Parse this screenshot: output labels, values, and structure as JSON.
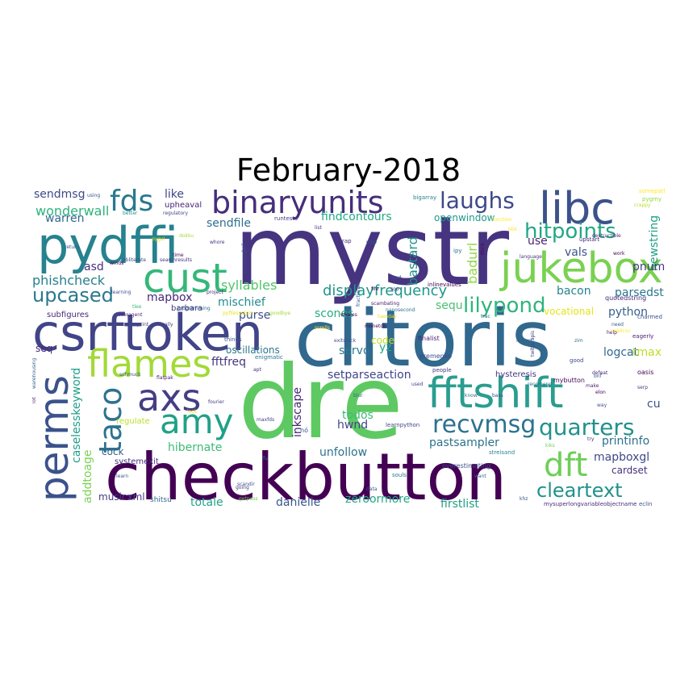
{
  "title": "February-2018",
  "words": [
    {
      "text": "mystr",
      "color": "#463480"
    },
    {
      "text": "clitoris",
      "color": "#31688e"
    },
    {
      "text": "checkbutton",
      "color": "#440154"
    },
    {
      "text": "dre",
      "color": "#5ec962"
    },
    {
      "text": "csrftoken",
      "color": "#414487"
    },
    {
      "text": "pydffi",
      "color": "#26828e"
    },
    {
      "text": "libc",
      "color": "#3b528b"
    },
    {
      "text": "jukebox",
      "color": "#7ad151"
    },
    {
      "text": "fftshift",
      "color": "#2a9d8f"
    },
    {
      "text": "binaryunits",
      "color": "#472d7b"
    },
    {
      "text": "perms",
      "color": "#3b528b"
    },
    {
      "text": "flames",
      "color": "#a2da37"
    },
    {
      "text": "cust",
      "color": "#35b779"
    },
    {
      "text": "axs",
      "color": "#433e85"
    },
    {
      "text": "amy",
      "color": "#1fa187"
    },
    {
      "text": "dft",
      "color": "#6ece58"
    },
    {
      "text": "taco",
      "color": "#2c728e"
    },
    {
      "text": "recvmsg",
      "color": "#2c728e"
    },
    {
      "text": "quarters",
      "color": "#21918c"
    },
    {
      "text": "fds",
      "color": "#2a788e"
    },
    {
      "text": "laughs",
      "color": "#3e4989"
    },
    {
      "text": "lilypond",
      "color": "#2fb47c"
    },
    {
      "text": "hitpoints",
      "color": "#22a785"
    },
    {
      "text": "cleartext",
      "color": "#21918c"
    },
    {
      "text": "upcased",
      "color": "#2a788e"
    },
    {
      "text": "sendmsg",
      "color": "#3e4a89"
    },
    {
      "text": "wonderwall",
      "color": "#2db27d"
    },
    {
      "text": "warren",
      "color": "#31688e"
    },
    {
      "text": "phishcheck",
      "color": "#277f8e"
    },
    {
      "text": "asd",
      "color": "#46327e"
    },
    {
      "text": "mapbox",
      "color": "#482878"
    },
    {
      "text": "displayfrequency",
      "color": "#1f968b"
    },
    {
      "text": "syllables",
      "color": "#52c569"
    },
    {
      "text": "mischief",
      "color": "#228c8d"
    },
    {
      "text": "purse",
      "color": "#3d4e8a"
    },
    {
      "text": "fftfreq",
      "color": "#453781"
    },
    {
      "text": "oscillations",
      "color": "#2a788e"
    },
    {
      "text": "sendfile",
      "color": "#2d708e"
    },
    {
      "text": "like",
      "color": "#404688"
    },
    {
      "text": "upheaval",
      "color": "#482475"
    },
    {
      "text": "findcontours",
      "color": "#22a884"
    },
    {
      "text": "openwindow",
      "color": "#1e9b8a"
    },
    {
      "text": "badurl",
      "color": "#8fd744"
    },
    {
      "text": "bastard",
      "color": "#20928c"
    },
    {
      "text": "newstring",
      "color": "#1fa088"
    },
    {
      "text": "pnum",
      "color": "#443a83"
    },
    {
      "text": "vals",
      "color": "#3a538b"
    },
    {
      "text": "use",
      "color": "#481f70"
    },
    {
      "text": "bacon",
      "color": "#26828e"
    },
    {
      "text": "parsedstring",
      "color": "#2a768e"
    },
    {
      "text": "python",
      "color": "#355f8d"
    },
    {
      "text": "logcat",
      "color": "#31688e"
    },
    {
      "text": "tmax",
      "color": "#bade28"
    },
    {
      "text": "cu",
      "color": "#3b528b"
    },
    {
      "text": "printinfo",
      "color": "#2d708e"
    },
    {
      "text": "mapboxgl",
      "color": "#3e4989"
    },
    {
      "text": "cardset",
      "color": "#46307e"
    },
    {
      "text": "sequ",
      "color": "#48c16e"
    },
    {
      "text": "yz",
      "color": "#27ad81"
    },
    {
      "text": "code",
      "color": "#c2df23"
    },
    {
      "text": "scones",
      "color": "#26ad81"
    },
    {
      "text": "servo",
      "color": "#2a788e"
    },
    {
      "text": "hwnd",
      "color": "#3f4788"
    },
    {
      "text": "todos",
      "color": "#3bbb75"
    },
    {
      "text": "setparseaction",
      "color": "#404588"
    },
    {
      "text": "inkscape",
      "color": "#482677"
    },
    {
      "text": "unfollow",
      "color": "#2c738e"
    },
    {
      "text": "pastsampler",
      "color": "#2c728e"
    },
    {
      "text": "hibernate",
      "color": "#3dbc74"
    },
    {
      "text": "cock",
      "color": "#355f8d"
    },
    {
      "text": "caselesskeyword",
      "color": "#1f9e89"
    },
    {
      "text": "addtoage",
      "color": "#7ad151"
    },
    {
      "text": "musicxml",
      "color": "#433e85"
    },
    {
      "text": "totale",
      "color": "#1fa188"
    },
    {
      "text": "danielle",
      "color": "#39568c"
    },
    {
      "text": "zeroormore",
      "color": "#22a785"
    },
    {
      "text": "firstlist",
      "color": "#1f9e89"
    },
    {
      "text": "seq",
      "color": "#472c7a"
    },
    {
      "text": "regulate",
      "color": "#bade28"
    },
    {
      "text": "systemexit",
      "color": "#46307e"
    },
    {
      "text": "barbara",
      "color": "#453781"
    },
    {
      "text": "subfigures",
      "color": "#482878"
    },
    {
      "text": "hysteresis",
      "color": "#46337f"
    },
    {
      "text": "finalist",
      "color": "#482475"
    },
    {
      "text": "eremenko",
      "color": "#3e4989"
    },
    {
      "text": "monetdb",
      "color": "#440154"
    },
    {
      "text": "mybutton",
      "color": "#46085c"
    },
    {
      "text": "quotedstring",
      "color": "#472a7a"
    },
    {
      "text": "vocational",
      "color": "#e5e419"
    },
    {
      "text": "charmed",
      "color": "#3b528b"
    },
    {
      "text": "upstart",
      "color": "#482475"
    },
    {
      "text": "eagerly",
      "color": "#481a6c"
    },
    {
      "text": "mysuperlongvariableobjectname",
      "color": "#472d7b"
    },
    {
      "text": "eclin",
      "color": "#3b528b"
    },
    {
      "text": "shitsu",
      "color": "#31688e"
    },
    {
      "text": "flatpak",
      "color": "#481d6f"
    },
    {
      "text": "fourier",
      "color": "#453882"
    },
    {
      "text": "maxfds",
      "color": "#414487"
    },
    {
      "text": "scandir",
      "color": "#3a538b"
    },
    {
      "text": "souls",
      "color": "#2c728e"
    },
    {
      "text": "overestimating",
      "color": "#3e4989"
    },
    {
      "text": "streisand",
      "color": "#25848e"
    },
    {
      "text": "learnpython",
      "color": "#414487"
    },
    {
      "text": "inlinevalues",
      "color": "#440154"
    },
    {
      "text": "searchresults",
      "color": "#46337f"
    },
    {
      "text": "obliterate",
      "color": "#404688"
    },
    {
      "text": "runtests",
      "color": "#433e85"
    },
    {
      "text": "bigarray",
      "color": "#26828e"
    },
    {
      "text": "somepath",
      "color": "#fde725"
    },
    {
      "text": "pygmy",
      "color": "#8fd744"
    },
    {
      "text": "regulatory",
      "color": "#3f4788"
    },
    {
      "text": "better",
      "color": "#21918c"
    },
    {
      "text": "dokku",
      "color": "#a0da39"
    },
    {
      "text": "whore",
      "color": "#463480"
    },
    {
      "text": "programming",
      "color": "#31688e"
    },
    {
      "text": "useragent",
      "color": "#482878"
    },
    {
      "text": "scambating",
      "color": "#48186a"
    },
    {
      "text": "nanosecond",
      "color": "#2c728e"
    },
    {
      "text": "tuesday",
      "color": "#e5e419"
    },
    {
      "text": "whales",
      "color": "#46085c"
    },
    {
      "text": "exitstack",
      "color": "#3b528b"
    },
    {
      "text": "people",
      "color": "#453882"
    },
    {
      "text": "enigmatic",
      "color": "#2d708e"
    },
    {
      "text": "things",
      "color": "#3b528b"
    },
    {
      "text": "going",
      "color": "#433e85"
    },
    {
      "text": "getpass",
      "color": "#6ece58"
    },
    {
      "text": "language",
      "color": "#46337f"
    },
    {
      "text": "function",
      "color": "#fde725"
    },
    {
      "text": "destructible",
      "color": "#482878"
    },
    {
      "text": "twitterapis",
      "color": "#3f4788"
    },
    {
      "text": "defeat",
      "color": "#482677"
    },
    {
      "text": "oasis",
      "color": "#440154"
    },
    {
      "text": "recomend",
      "color": "#2c728e"
    },
    {
      "text": "serp",
      "color": "#433e85"
    },
    {
      "text": "make",
      "color": "#481f70"
    },
    {
      "text": "work",
      "color": "#440154"
    },
    {
      "text": "need",
      "color": "#355f8d"
    },
    {
      "text": "help",
      "color": "#481467"
    },
    {
      "text": "good",
      "color": "#3e4989"
    },
    {
      "text": "elon",
      "color": "#440154"
    },
    {
      "text": "bnf",
      "color": "#3b528b"
    },
    {
      "text": "try",
      "color": "#46307e"
    },
    {
      "text": "khz",
      "color": "#3b528b"
    },
    {
      "text": "want",
      "color": "#31688e"
    },
    {
      "text": "data",
      "color": "#3b528b"
    },
    {
      "text": "know",
      "color": "#2c728e"
    },
    {
      "text": "bass",
      "color": "#3e4989"
    },
    {
      "text": "used",
      "color": "#404688"
    },
    {
      "text": "blur",
      "color": "#31688e"
    },
    {
      "text": "file",
      "color": "#46085c"
    },
    {
      "text": "resp",
      "color": "#3b528b"
    },
    {
      "text": "list",
      "color": "#472d7b"
    },
    {
      "text": "rap",
      "color": "#46307e"
    },
    {
      "text": "ipy",
      "color": "#2c728e"
    },
    {
      "text": "import",
      "color": "#355f8d"
    },
    {
      "text": "pygal",
      "color": "#e5e419"
    },
    {
      "text": "learn",
      "color": "#3b528b"
    },
    {
      "text": "time",
      "color": "#440154"
    },
    {
      "text": "return",
      "color": "#3b528b"
    },
    {
      "text": "print",
      "color": "#3f4788"
    },
    {
      "text": "really",
      "color": "#414487"
    },
    {
      "text": "look",
      "color": "#fde725"
    },
    {
      "text": "winds",
      "color": "#440154"
    },
    {
      "text": "learning",
      "color": "#3b528b"
    },
    {
      "text": "project",
      "color": "#472d7b"
    },
    {
      "text": "fu",
      "color": "#2c728e"
    },
    {
      "text": "heli",
      "color": "#3e4989"
    },
    {
      "text": "read",
      "color": "#3b528b"
    },
    {
      "text": "fractional",
      "color": "#31688e"
    },
    {
      "text": "think",
      "color": "#46085c"
    },
    {
      "text": "way",
      "color": "#3b528b"
    },
    {
      "text": "zim",
      "color": "#2c728e"
    },
    {
      "text": "readcsv",
      "color": "#fde725"
    },
    {
      "text": "kiks",
      "color": "#6ece58"
    },
    {
      "text": "crappy",
      "color": "#bade28"
    },
    {
      "text": "tlee",
      "color": "#35b779"
    },
    {
      "text": "hbk",
      "color": "#fde725"
    },
    {
      "text": "using",
      "color": "#3b528b"
    },
    {
      "text": "warehousing",
      "color": "#355f8d"
    },
    {
      "text": "lot",
      "color": "#482878"
    },
    {
      "text": "schmuck",
      "color": "#3b528b"
    },
    {
      "text": "pyfilesystem",
      "color": "#e5e419"
    },
    {
      "text": "goodbye",
      "color": "#a0da39"
    },
    {
      "text": "apt",
      "color": "#482878"
    },
    {
      "text": "ensembles",
      "color": "#3e4989"
    },
    {
      "text": "sop",
      "color": "#433e85"
    },
    {
      "text": "nó",
      "color": "#3b528b"
    },
    {
      "text": "scrolls",
      "color": "#fde725"
    },
    {
      "text": "trac",
      "color": "#31688e"
    },
    {
      "text": "inlinevalues2",
      "color": "#3b528b"
    }
  ]
}
